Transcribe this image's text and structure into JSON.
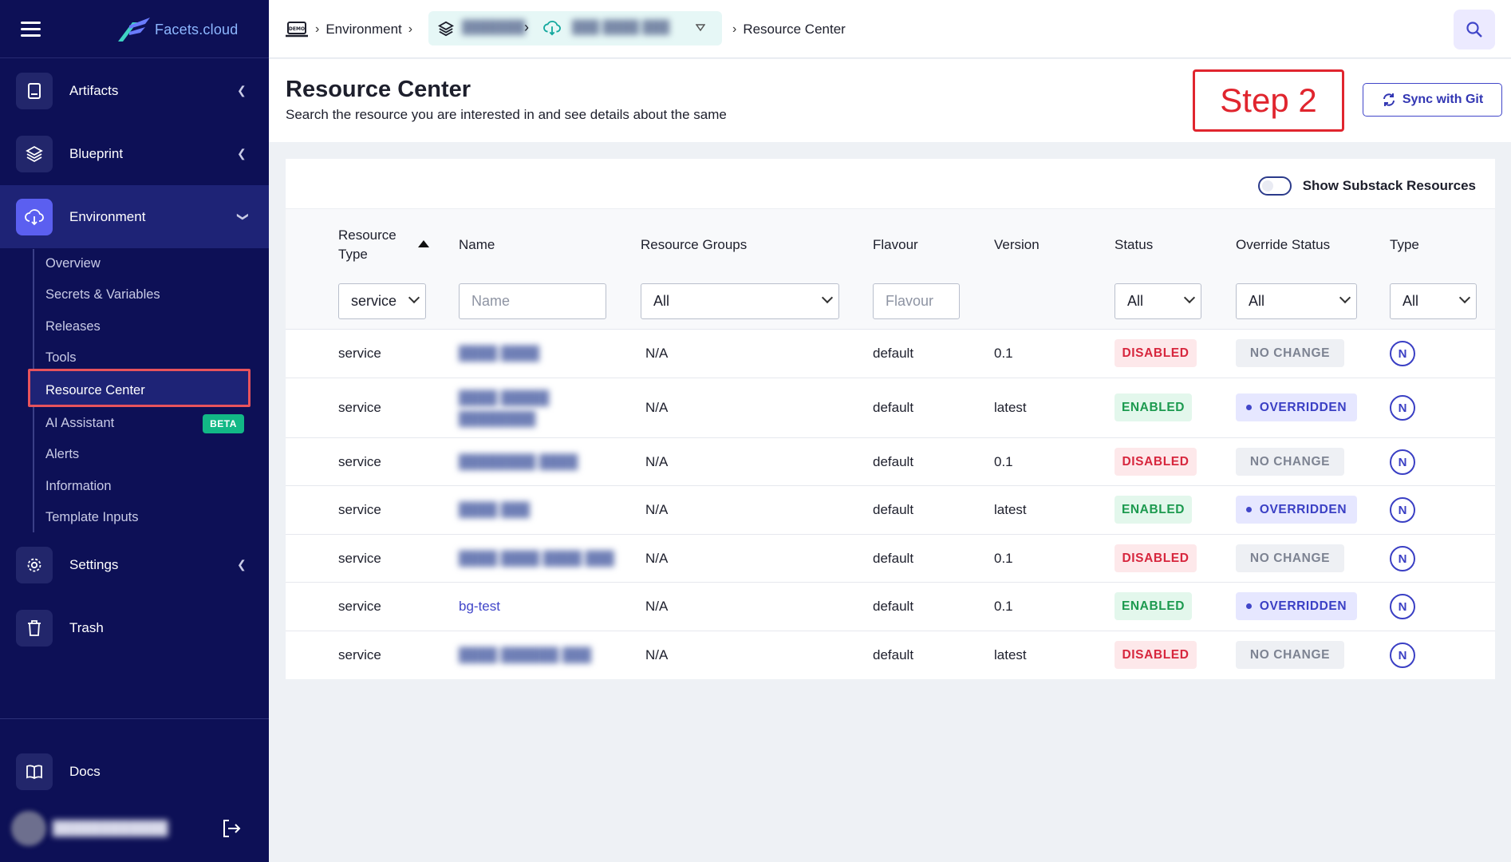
{
  "sidebar": {
    "logo_text": "Facets.cloud",
    "nav": [
      {
        "label": "Artifacts",
        "icon": "artifact-icon"
      },
      {
        "label": "Blueprint",
        "icon": "layers-icon"
      },
      {
        "label": "Environment",
        "icon": "cloud-icon"
      },
      {
        "label": "Settings",
        "icon": "gear-icon"
      },
      {
        "label": "Trash",
        "icon": "trash-icon"
      },
      {
        "label": "Docs",
        "icon": "book-icon"
      }
    ],
    "subnav": [
      "Overview",
      "Secrets & Variables",
      "Releases",
      "Tools",
      "Resource Center",
      "AI Assistant",
      "Alerts",
      "Information",
      "Template Inputs"
    ],
    "beta_badge": "BETA",
    "user_name": "████████████"
  },
  "header": {
    "breadcrumb_env": "Environment",
    "breadcrumb_project": "███████",
    "breadcrumb_stack": "███ ████ ███",
    "breadcrumb_current": "Resource Center"
  },
  "page": {
    "title": "Resource Center",
    "subtitle": "Search the resource you are interested in and see details about the same",
    "step_label": "Step 2",
    "sync_button": "Sync with Git",
    "toggle_label": "Show Substack Resources"
  },
  "table": {
    "columns": [
      "Resource Type",
      "Name",
      "Resource Groups",
      "Flavour",
      "Version",
      "Status",
      "Override Status",
      "Type"
    ],
    "filters": {
      "resource_type": "service",
      "name_placeholder": "Name",
      "resource_groups": "All",
      "flavour_placeholder": "Flavour",
      "status": "All",
      "override_status": "All",
      "type": "All"
    },
    "rows": [
      {
        "type": "service",
        "name": "████ ████",
        "group": "N/A",
        "flavour": "default",
        "version": "0.1",
        "status": "DISABLED",
        "override": "NO CHANGE",
        "kind": "N"
      },
      {
        "type": "service",
        "name": "████ █████",
        "name2": "████████",
        "group": "N/A",
        "flavour": "default",
        "version": "latest",
        "status": "ENABLED",
        "override": "OVERRIDDEN",
        "kind": "N"
      },
      {
        "type": "service",
        "name": "████████ ████",
        "group": "N/A",
        "flavour": "default",
        "version": "0.1",
        "status": "DISABLED",
        "override": "NO CHANGE",
        "kind": "N"
      },
      {
        "type": "service",
        "name": "████ ███",
        "group": "N/A",
        "flavour": "default",
        "version": "latest",
        "status": "ENABLED",
        "override": "OVERRIDDEN",
        "kind": "N"
      },
      {
        "type": "service",
        "name": "████ ████ ████ ███",
        "group": "N/A",
        "flavour": "default",
        "version": "0.1",
        "status": "DISABLED",
        "override": "NO CHANGE",
        "kind": "N"
      },
      {
        "type": "service",
        "name": "bg-test",
        "group": "N/A",
        "flavour": "default",
        "version": "0.1",
        "status": "ENABLED",
        "override": "OVERRIDDEN",
        "kind": "N"
      },
      {
        "type": "service",
        "name": "████ ██████ ███",
        "group": "N/A",
        "flavour": "default",
        "version": "latest",
        "status": "DISABLED",
        "override": "NO CHANGE",
        "kind": "N"
      }
    ]
  }
}
